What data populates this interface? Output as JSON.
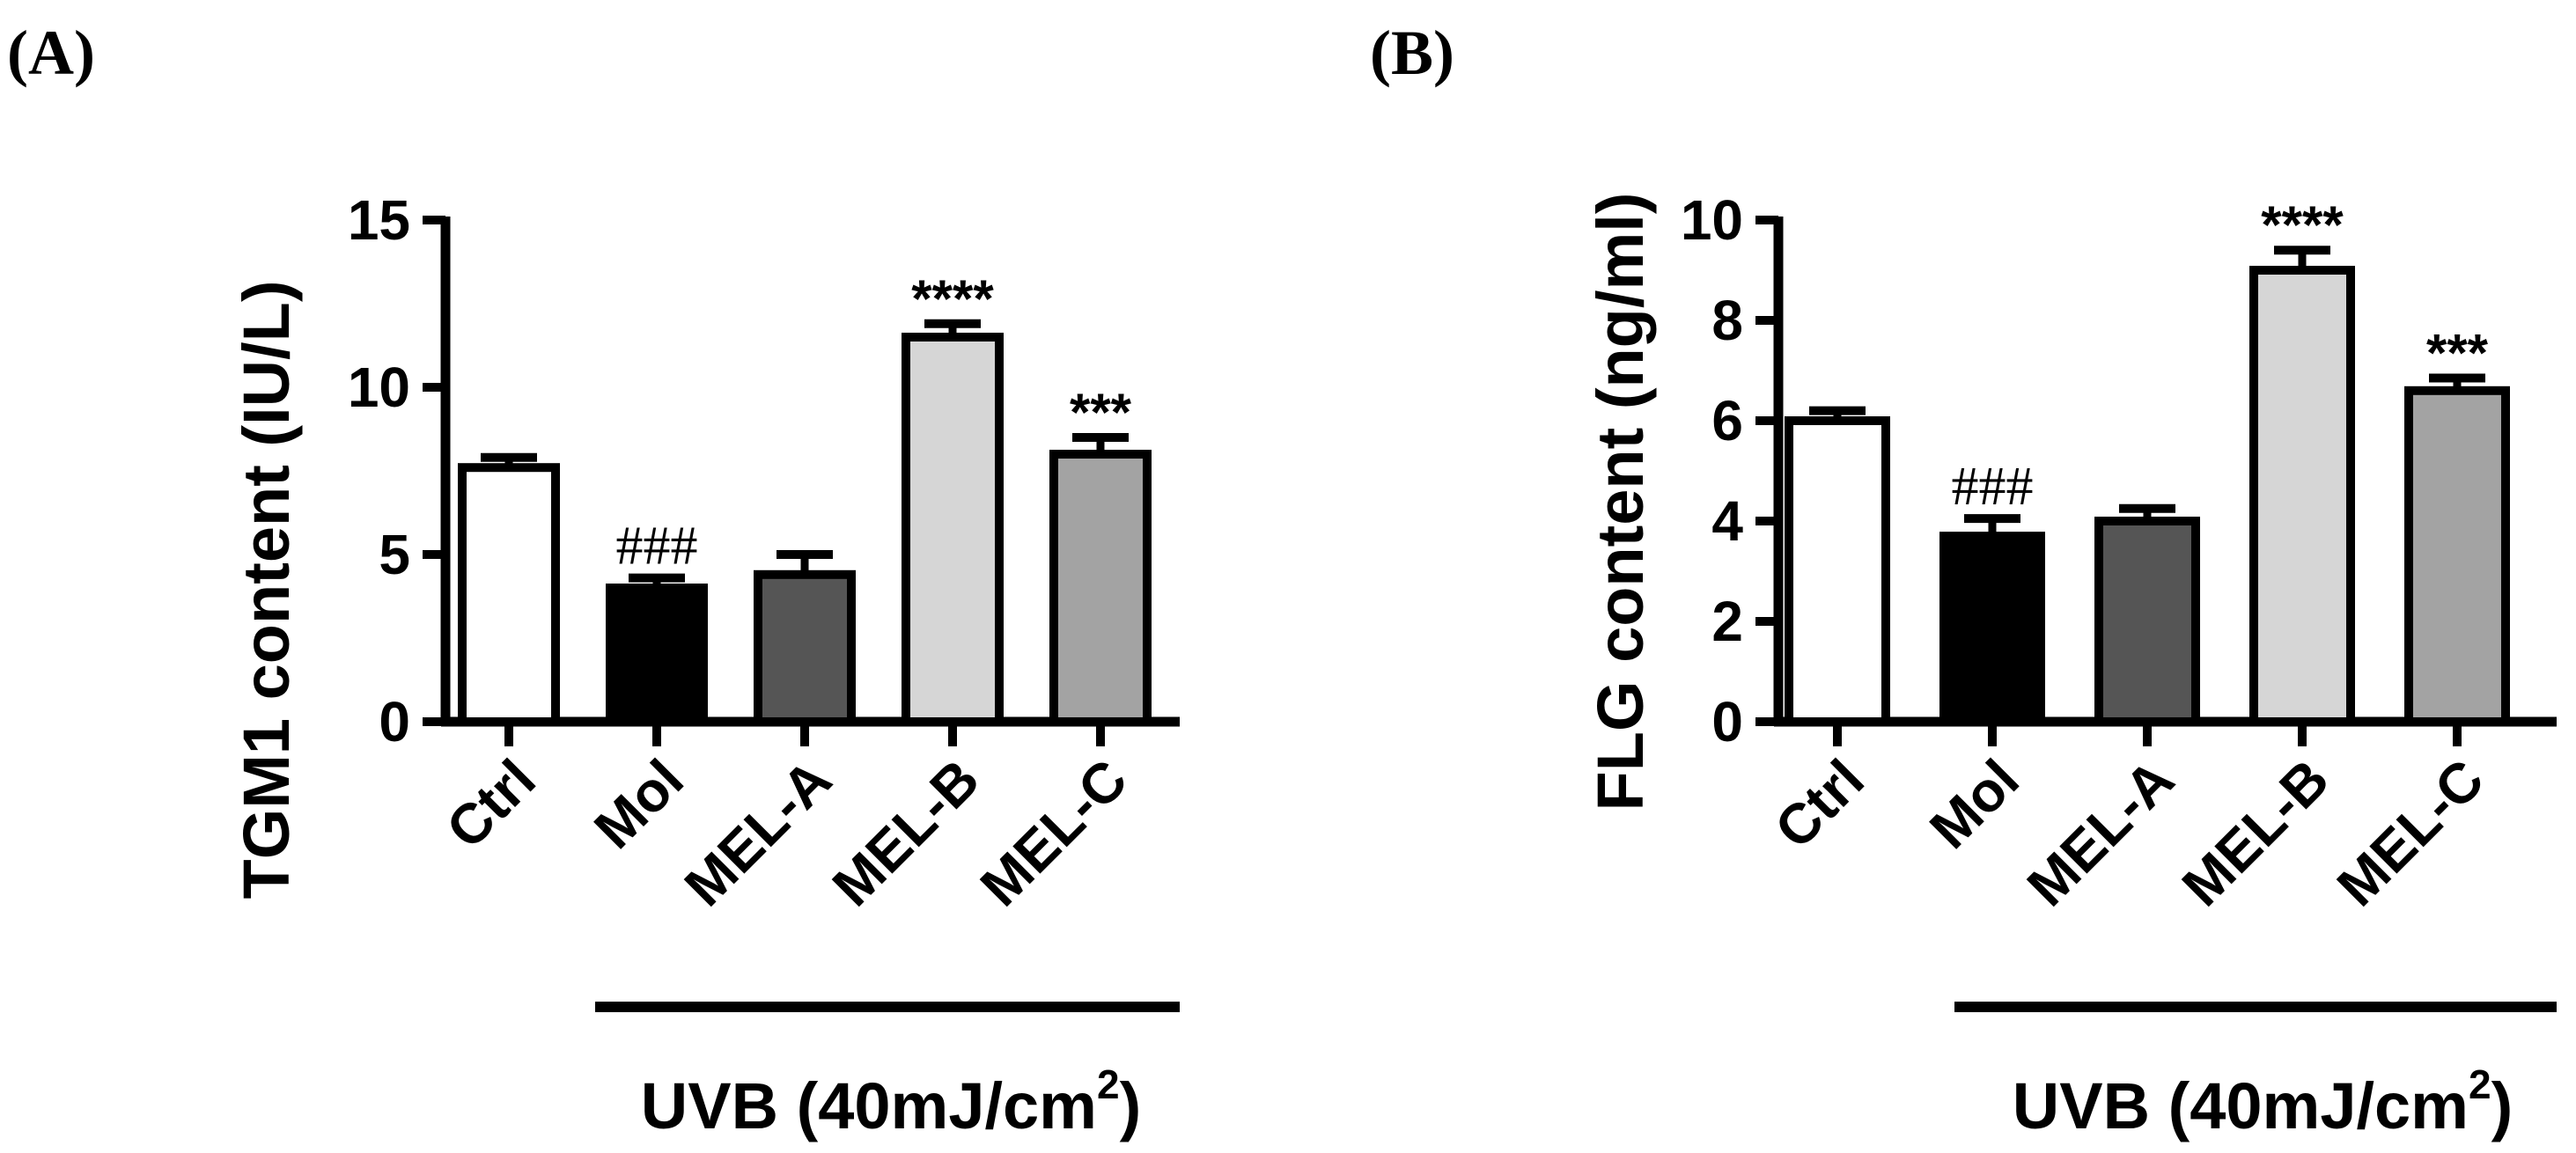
{
  "chart_data": [
    {
      "type": "bar",
      "panel_label": "(A)",
      "ylabel": "TGM1 content (IU/L)",
      "ylim": [
        0,
        15
      ],
      "yticks": [
        "0",
        "5",
        "10",
        "15"
      ],
      "categories": [
        "Ctrl",
        "Mol",
        "MEL-A",
        "MEL-B",
        "MEL-C"
      ],
      "values": [
        7.6,
        4.0,
        4.4,
        11.5,
        8.0
      ],
      "errors": [
        0.3,
        0.3,
        0.6,
        0.4,
        0.5
      ],
      "colors": [
        "#ffffff",
        "#000000",
        "#555555",
        "#d6d6d6",
        "#a3a3a3"
      ],
      "annotations": [
        "",
        "###",
        "",
        "****",
        "***"
      ],
      "group_bracket": {
        "label_main": "UVB (40mJ/cm",
        "label_sup": "2",
        "label_end": ")",
        "covers": [
          "Mol",
          "MEL-A",
          "MEL-B",
          "MEL-C"
        ]
      }
    },
    {
      "type": "bar",
      "panel_label": "(B)",
      "ylabel": "FLG content (ng/ml)",
      "ylim": [
        0,
        10
      ],
      "yticks": [
        "0",
        "2",
        "4",
        "6",
        "8",
        "10"
      ],
      "categories": [
        "Ctrl",
        "Mol",
        "MEL-A",
        "MEL-B",
        "MEL-C"
      ],
      "values": [
        6.0,
        3.7,
        4.0,
        9.0,
        6.6
      ],
      "errors": [
        0.2,
        0.35,
        0.25,
        0.4,
        0.25
      ],
      "colors": [
        "#ffffff",
        "#000000",
        "#555555",
        "#d6d6d6",
        "#a3a3a3"
      ],
      "annotations": [
        "",
        "###",
        "",
        "****",
        "***"
      ],
      "group_bracket": {
        "label_main": "UVB (40mJ/cm",
        "label_sup": "2",
        "label_end": ")",
        "covers": [
          "Mol",
          "MEL-A",
          "MEL-B",
          "MEL-C"
        ]
      }
    }
  ]
}
